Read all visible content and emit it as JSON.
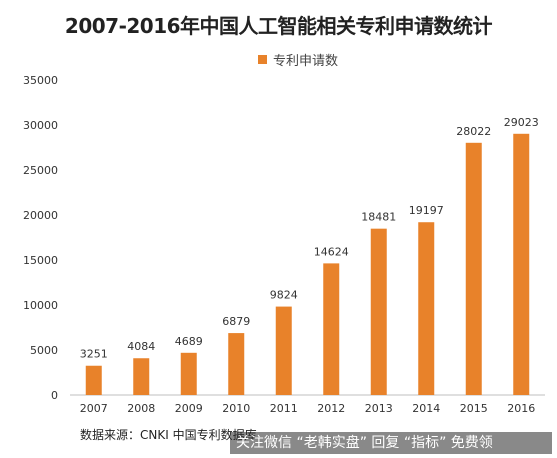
{
  "chart_data": {
    "type": "bar",
    "title": "2007-2016年中国人工智能相关专利申请数统计",
    "xlabel": "",
    "ylabel": "",
    "categories": [
      "2007",
      "2008",
      "2009",
      "2010",
      "2011",
      "2012",
      "2013",
      "2014",
      "2015",
      "2016"
    ],
    "series": [
      {
        "name": "专利申请数",
        "values": [
          3251,
          4084,
          4689,
          6879,
          9824,
          14624,
          18481,
          19197,
          28022,
          29023
        ]
      }
    ],
    "ylim": [
      0,
      35000
    ],
    "yticks": [
      "0",
      "5000",
      "10000",
      "15000",
      "20000",
      "25000",
      "30000",
      "35000"
    ],
    "data_labels": [
      "3251",
      "4084",
      "4689",
      "6879",
      "9824",
      "14624",
      "18481",
      "19197",
      "28022",
      "29023"
    ],
    "grid": false,
    "legend_position": "top-center",
    "bar_color": "#E8822A"
  },
  "source_text": "数据来源：CNKI 中国专利数据库",
  "overlay_text": "关注微信 “老韩实盘” 回复 “指标” 免费领"
}
